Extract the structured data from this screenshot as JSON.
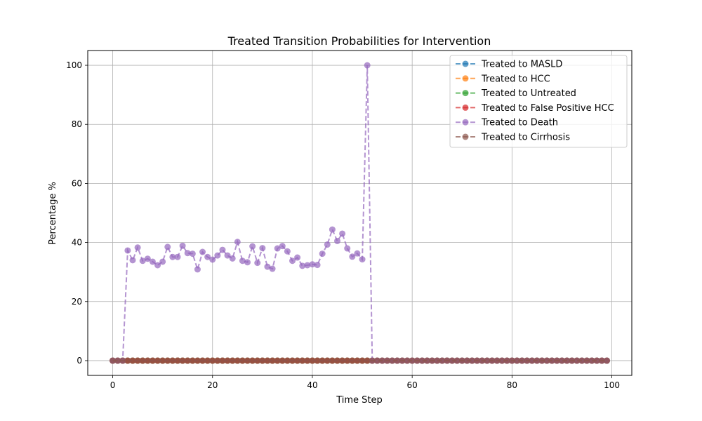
{
  "chart_data": {
    "type": "line",
    "title": "Treated Transition Probabilities for Intervention",
    "xlabel": "Time Step",
    "ylabel": "Percentage %",
    "xlim": [
      -5,
      104
    ],
    "ylim": [
      -5,
      105
    ],
    "xticks": [
      0,
      20,
      40,
      60,
      80,
      100
    ],
    "yticks": [
      0,
      20,
      40,
      60,
      80,
      100
    ],
    "grid": true,
    "legend_position": "top-right",
    "x_start": 0,
    "x_end": 99,
    "series": [
      {
        "name": "Treated to MASLD",
        "color": "#1f77b4",
        "values_nonzero": {}
      },
      {
        "name": "Treated to HCC",
        "color": "#ff7f0e",
        "values_nonzero": {}
      },
      {
        "name": "Treated to Untreated",
        "color": "#2ca02c",
        "values_nonzero": {}
      },
      {
        "name": "Treated to False Positive HCC",
        "color": "#d62728",
        "values_nonzero": {}
      },
      {
        "name": "Treated to Death",
        "color": "#9467bd",
        "values_nonzero": {
          "3": 37.3,
          "4": 34.0,
          "5": 38.3,
          "6": 33.8,
          "7": 34.5,
          "8": 33.5,
          "9": 32.3,
          "10": 33.5,
          "11": 38.5,
          "12": 35.1,
          "13": 35.1,
          "14": 38.9,
          "15": 36.4,
          "16": 36.2,
          "17": 30.9,
          "18": 36.8,
          "19": 35.1,
          "20": 34.2,
          "21": 35.6,
          "22": 37.5,
          "23": 35.6,
          "24": 34.6,
          "25": 40.2,
          "26": 33.8,
          "27": 33.3,
          "28": 38.7,
          "29": 33.1,
          "30": 38.1,
          "31": 31.8,
          "32": 31.1,
          "33": 38.0,
          "34": 38.8,
          "35": 37.0,
          "36": 33.8,
          "37": 34.9,
          "38": 32.1,
          "39": 32.3,
          "40": 32.6,
          "41": 32.4,
          "42": 36.2,
          "43": 39.3,
          "44": 44.4,
          "45": 40.5,
          "46": 43.0,
          "47": 38.0,
          "48": 35.2,
          "49": 36.3,
          "50": 34.3,
          "51": 100.0
        }
      },
      {
        "name": "Treated to Cirrhosis",
        "color": "#8c564b",
        "values_nonzero": {}
      }
    ]
  }
}
